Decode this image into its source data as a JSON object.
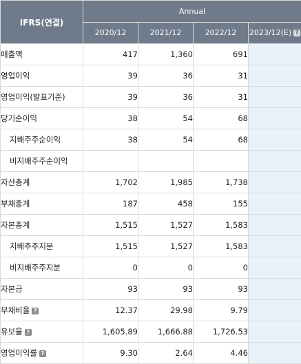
{
  "table": {
    "corner_label": "IFRS(연결)",
    "group_label": "Annual",
    "years": [
      {
        "label": "2020/12",
        "help": false
      },
      {
        "label": "2021/12",
        "help": false
      },
      {
        "label": "2022/12",
        "help": false
      },
      {
        "label": "2023/12(E)",
        "help": true
      }
    ],
    "help_glyph": "?",
    "rows": [
      {
        "label": "매출액",
        "indent": false,
        "help": false,
        "values": [
          "417",
          "1,360",
          "691",
          ""
        ]
      },
      {
        "label": "영업이익",
        "indent": false,
        "help": false,
        "values": [
          "39",
          "36",
          "31",
          ""
        ]
      },
      {
        "label": "영업이익(발표기준)",
        "indent": false,
        "help": false,
        "values": [
          "39",
          "36",
          "31",
          ""
        ]
      },
      {
        "label": "당기순이익",
        "indent": false,
        "help": false,
        "values": [
          "38",
          "54",
          "68",
          ""
        ]
      },
      {
        "label": "지배주주순이익",
        "indent": true,
        "help": false,
        "values": [
          "38",
          "54",
          "68",
          ""
        ]
      },
      {
        "label": "비지배주주순이익",
        "indent": true,
        "help": false,
        "values": [
          "",
          "",
          "",
          ""
        ]
      },
      {
        "label": "자산총계",
        "indent": false,
        "help": false,
        "values": [
          "1,702",
          "1,985",
          "1,738",
          ""
        ]
      },
      {
        "label": "부채총계",
        "indent": false,
        "help": false,
        "values": [
          "187",
          "458",
          "155",
          ""
        ]
      },
      {
        "label": "자본총계",
        "indent": false,
        "help": false,
        "values": [
          "1,515",
          "1,527",
          "1,583",
          ""
        ]
      },
      {
        "label": "지배주주지분",
        "indent": true,
        "help": false,
        "values": [
          "1,515",
          "1,527",
          "1,583",
          ""
        ]
      },
      {
        "label": "비지배주주지분",
        "indent": true,
        "help": false,
        "values": [
          "0",
          "0",
          "0",
          ""
        ]
      },
      {
        "label": "자본금",
        "indent": false,
        "help": false,
        "values": [
          "93",
          "93",
          "93",
          ""
        ]
      },
      {
        "label": "부채비율",
        "indent": false,
        "help": true,
        "values": [
          "12.37",
          "29.98",
          "9.79",
          ""
        ]
      },
      {
        "label": "유보율",
        "indent": false,
        "help": true,
        "values": [
          "1,605.89",
          "1,666.88",
          "1,726.53",
          ""
        ]
      },
      {
        "label": "영업이익률",
        "indent": false,
        "help": true,
        "values": [
          "9.30",
          "2.64",
          "4.46",
          ""
        ]
      }
    ]
  },
  "colors": {
    "header_bg": "#6f7b8a",
    "header_text": "#ffffff",
    "estimate_column_bg": "#e8f2fb",
    "grid_line": "#d9d9d9"
  },
  "icons": {
    "help": "help-icon"
  }
}
